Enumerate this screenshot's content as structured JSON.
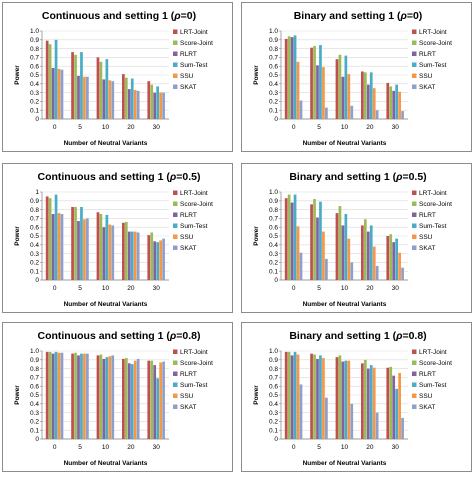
{
  "series_names": [
    "LRT-Joint",
    "Score-Joint",
    "RLRT",
    "Sum-Test",
    "SSU",
    "SKAT"
  ],
  "series_colors": [
    "#C0504D",
    "#9BBB59",
    "#8064A2",
    "#4BACC6",
    "#F79646",
    "#8DA0CB"
  ],
  "chart_data": [
    {
      "type": "bar",
      "title": "Continuous and setting 1 (",
      "title_symbol": "ρ",
      "title_suffix": "=0)",
      "xlabel": "Number of Neutral Variants",
      "ylabel": "Power",
      "ylim": [
        0,
        1
      ],
      "yticks": [
        "0",
        "0.1",
        "0.2",
        "0.3",
        "0.4",
        "0.5",
        "0.6",
        "0.7",
        "0.8",
        "0.9",
        "1.0"
      ],
      "categories": [
        "0",
        "5",
        "10",
        "20",
        "30"
      ],
      "series": [
        {
          "name": "LRT-Joint",
          "values": [
            0.89,
            0.76,
            0.7,
            0.51,
            0.43
          ]
        },
        {
          "name": "Score-Joint",
          "values": [
            0.85,
            0.73,
            0.65,
            0.47,
            0.39
          ]
        },
        {
          "name": "RLRT",
          "values": [
            0.58,
            0.49,
            0.45,
            0.34,
            0.3
          ]
        },
        {
          "name": "Sum-Test",
          "values": [
            0.9,
            0.76,
            0.68,
            0.46,
            0.37
          ]
        },
        {
          "name": "SSU",
          "values": [
            0.57,
            0.48,
            0.44,
            0.33,
            0.3
          ]
        },
        {
          "name": "SKAT",
          "values": [
            0.56,
            0.48,
            0.43,
            0.32,
            0.3
          ]
        }
      ]
    },
    {
      "type": "bar",
      "title": "Binary and setting 1 (",
      "title_symbol": "ρ",
      "title_suffix": "=0)",
      "xlabel": "Number of Neutral Variants",
      "ylabel": "Power",
      "ylim": [
        0,
        1
      ],
      "yticks": [
        "0",
        "0.1",
        "0.2",
        "0.3",
        "0.4",
        "0.5",
        "0.6",
        "0.7",
        "0.8",
        "0.9",
        "1.0"
      ],
      "categories": [
        "0",
        "5",
        "10",
        "20",
        "30"
      ],
      "series": [
        {
          "name": "LRT-Joint",
          "values": [
            0.91,
            0.81,
            0.68,
            0.54,
            0.41
          ]
        },
        {
          "name": "Score-Joint",
          "values": [
            0.94,
            0.83,
            0.73,
            0.53,
            0.37
          ]
        },
        {
          "name": "RLRT",
          "values": [
            0.93,
            0.61,
            0.48,
            0.39,
            0.32
          ]
        },
        {
          "name": "Sum-Test",
          "values": [
            0.95,
            0.84,
            0.72,
            0.53,
            0.39
          ]
        },
        {
          "name": "SSU",
          "values": [
            0.65,
            0.59,
            0.51,
            0.35,
            0.31
          ]
        },
        {
          "name": "SKAT",
          "values": [
            0.21,
            0.13,
            0.15,
            0.1,
            0.09
          ]
        }
      ]
    },
    {
      "type": "bar",
      "title": "Continuous and setting 1 (",
      "title_symbol": "ρ",
      "title_suffix": "=0.5)",
      "xlabel": "Number of Neutral Variants",
      "ylabel": "Power",
      "ylim": [
        0,
        1
      ],
      "yticks": [
        "0",
        "0.1",
        "0.2",
        "0.3",
        "0.4",
        "0.5",
        "0.6",
        "0.7",
        "0.8",
        "0.9",
        "1"
      ],
      "categories": [
        "0",
        "5",
        "10",
        "20",
        "30"
      ],
      "series": [
        {
          "name": "LRT-Joint",
          "values": [
            0.95,
            0.83,
            0.77,
            0.65,
            0.51
          ]
        },
        {
          "name": "Score-Joint",
          "values": [
            0.93,
            0.83,
            0.75,
            0.66,
            0.54
          ]
        },
        {
          "name": "RLRT",
          "values": [
            0.75,
            0.67,
            0.6,
            0.55,
            0.44
          ]
        },
        {
          "name": "Sum-Test",
          "values": [
            0.97,
            0.83,
            0.74,
            0.55,
            0.43
          ]
        },
        {
          "name": "SSU",
          "values": [
            0.76,
            0.69,
            0.63,
            0.55,
            0.45
          ]
        },
        {
          "name": "SKAT",
          "values": [
            0.75,
            0.7,
            0.62,
            0.54,
            0.47
          ]
        }
      ]
    },
    {
      "type": "bar",
      "title": "Binary and setting 1 (",
      "title_symbol": "ρ",
      "title_suffix": "=0.5)",
      "xlabel": "Number of Neutral Variants",
      "ylabel": "Power",
      "ylim": [
        0,
        1
      ],
      "yticks": [
        "0",
        "0.1",
        "0.2",
        "0.3",
        "0.4",
        "0.5",
        "0.6",
        "0.7",
        "0.8",
        "0.9",
        "1.0"
      ],
      "categories": [
        "0",
        "5",
        "10",
        "20",
        "30"
      ],
      "series": [
        {
          "name": "LRT-Joint",
          "values": [
            0.93,
            0.86,
            0.76,
            0.62,
            0.5
          ]
        },
        {
          "name": "Score-Joint",
          "values": [
            0.97,
            0.92,
            0.84,
            0.69,
            0.52
          ]
        },
        {
          "name": "RLRT",
          "values": [
            0.88,
            0.71,
            0.62,
            0.55,
            0.43
          ]
        },
        {
          "name": "Sum-Test",
          "values": [
            0.97,
            0.89,
            0.75,
            0.62,
            0.47
          ]
        },
        {
          "name": "SSU",
          "values": [
            0.61,
            0.55,
            0.47,
            0.38,
            0.31
          ]
        },
        {
          "name": "SKAT",
          "values": [
            0.31,
            0.24,
            0.2,
            0.16,
            0.14
          ]
        }
      ]
    },
    {
      "type": "bar",
      "title": "Continuous and setting 1 (",
      "title_symbol": "ρ",
      "title_suffix": "=0.8)",
      "xlabel": "Number of Neutral Variants",
      "ylabel": "Power",
      "ylim": [
        0,
        1
      ],
      "yticks": [
        "0",
        "0.1",
        "0.2",
        "0.3",
        "0.4",
        "0.5",
        "0.6",
        "0.7",
        "0.8",
        "0.9",
        "1.0"
      ],
      "categories": [
        "0",
        "5",
        "10",
        "20",
        "30"
      ],
      "series": [
        {
          "name": "LRT-Joint",
          "values": [
            0.99,
            0.97,
            0.95,
            0.91,
            0.89
          ]
        },
        {
          "name": "Score-Joint",
          "values": [
            0.99,
            0.98,
            0.96,
            0.92,
            0.89
          ]
        },
        {
          "name": "RLRT",
          "values": [
            0.97,
            0.95,
            0.91,
            0.86,
            0.84
          ]
        },
        {
          "name": "Sum-Test",
          "values": [
            0.99,
            0.97,
            0.93,
            0.85,
            0.69
          ]
        },
        {
          "name": "SSU",
          "values": [
            0.98,
            0.97,
            0.94,
            0.89,
            0.87
          ]
        },
        {
          "name": "SKAT",
          "values": [
            0.98,
            0.97,
            0.95,
            0.91,
            0.88
          ]
        }
      ]
    },
    {
      "type": "bar",
      "title": "Binary and setting 1 (",
      "title_symbol": "ρ",
      "title_suffix": "=0.8)",
      "xlabel": "Number of Neutral Variants",
      "ylabel": "Power",
      "ylim": [
        0,
        1
      ],
      "yticks": [
        "0",
        "0.1",
        "0.2",
        "0.3",
        "0.4",
        "0.5",
        "0.6",
        "0.7",
        "0.8",
        "0.9",
        "1.0"
      ],
      "categories": [
        "0",
        "5",
        "10",
        "20",
        "30"
      ],
      "series": [
        {
          "name": "LRT-Joint",
          "values": [
            0.99,
            0.97,
            0.93,
            0.86,
            0.81
          ]
        },
        {
          "name": "Score-Joint",
          "values": [
            0.99,
            0.96,
            0.95,
            0.9,
            0.82
          ]
        },
        {
          "name": "RLRT",
          "values": [
            0.95,
            0.91,
            0.88,
            0.8,
            0.72
          ]
        },
        {
          "name": "Sum-Test",
          "values": [
            0.99,
            0.95,
            0.89,
            0.84,
            0.57
          ]
        },
        {
          "name": "SSU",
          "values": [
            0.96,
            0.92,
            0.89,
            0.81,
            0.75
          ]
        },
        {
          "name": "SKAT",
          "values": [
            0.62,
            0.47,
            0.4,
            0.3,
            0.24
          ]
        }
      ]
    }
  ]
}
